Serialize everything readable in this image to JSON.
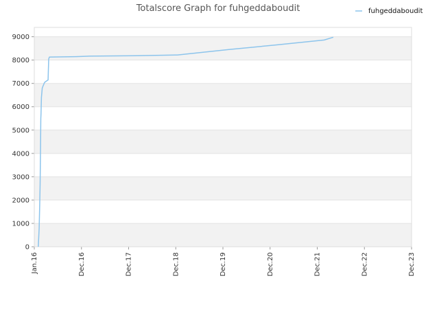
{
  "chart_data": {
    "type": "line",
    "title": "Totalscore Graph for fuhgeddaboudit",
    "xlabel": "",
    "ylabel": "",
    "x_ticks": [
      "Jan.16",
      "Dec.16",
      "Dec.17",
      "Dec.18",
      "Dec.19",
      "Dec.20",
      "Dec.21",
      "Dec.22",
      "Dec.23"
    ],
    "ylim": [
      0,
      9400
    ],
    "yticks": [
      0,
      1000,
      2000,
      3000,
      4000,
      5000,
      6000,
      7000,
      8000,
      9000
    ],
    "grid": true,
    "legend_position": "top-right",
    "colors": {
      "line": "#8cc4ec",
      "band": "#f2f2f2",
      "grid": "#e3e3e3"
    },
    "series": [
      {
        "name": "fuhgeddaboudit",
        "x": [
          "2016-02-01",
          "2016-02-08",
          "2016-02-12",
          "2016-02-15",
          "2016-02-18",
          "2016-02-20",
          "2016-02-22",
          "2016-02-25",
          "2016-03-01",
          "2016-03-08",
          "2016-03-12",
          "2016-03-15",
          "2016-03-20",
          "2016-04-15",
          "2016-04-20",
          "2016-04-25",
          "2016-11-15",
          "2017-03-01",
          "2018-03-01",
          "2019-01-01",
          "2020-02-01",
          "2021-02-01",
          "2022-02-01",
          "2022-04-10"
        ],
        "values": [
          0,
          800,
          1800,
          2700,
          4300,
          5500,
          5700,
          6400,
          6800,
          6900,
          6950,
          7000,
          7050,
          7150,
          8050,
          8130,
          8150,
          8170,
          8190,
          8220,
          8450,
          8650,
          8860,
          8980
        ]
      }
    ]
  }
}
